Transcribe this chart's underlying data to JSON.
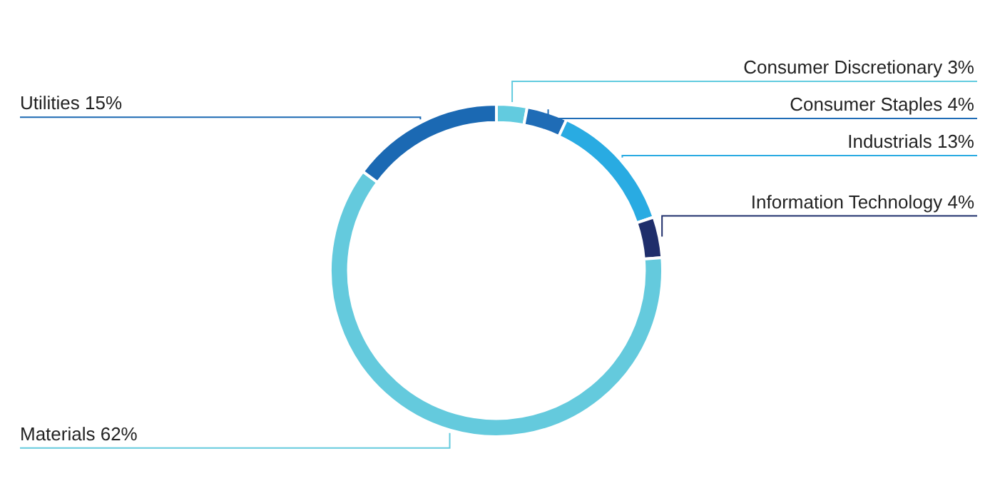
{
  "chart_data": {
    "type": "donut",
    "categories": [
      "Consumer Discretionary",
      "Consumer Staples",
      "Industrials",
      "Information Technology",
      "Materials",
      "Utilities"
    ],
    "values": [
      3,
      4,
      13,
      4,
      62,
      15
    ],
    "value_labels": [
      "3%",
      "4%",
      "13%",
      "4%",
      "62%",
      "15%"
    ],
    "colors": [
      "#62cbdf",
      "#1f6cb6",
      "#29abe2",
      "#1f2e6b",
      "#64cadd",
      "#1b69b3"
    ],
    "legend": false
  }
}
